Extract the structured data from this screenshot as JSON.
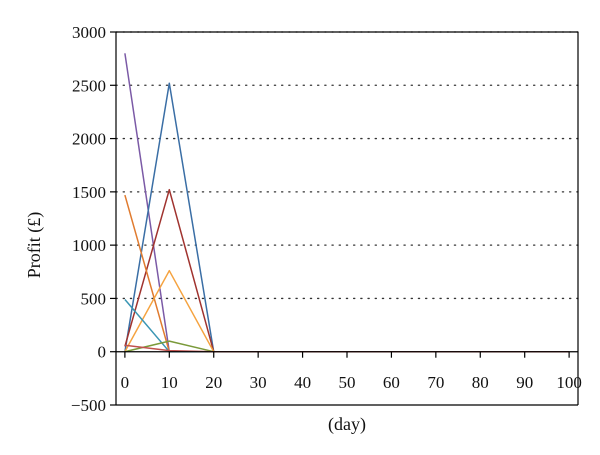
{
  "chart_data": {
    "type": "line",
    "title": "",
    "xlabel": "(day)",
    "ylabel": "Profit (£)",
    "x": [
      0,
      10,
      20,
      30,
      40,
      50,
      60,
      70,
      80,
      90,
      100
    ],
    "xlim": [
      -2,
      102
    ],
    "ylim": [
      -500,
      3000
    ],
    "yticks": [
      -500,
      0,
      500,
      1000,
      1500,
      2000,
      2500,
      3000
    ],
    "xticks": [
      0,
      10,
      20,
      30,
      40,
      50,
      60,
      70,
      80,
      90,
      100
    ],
    "grid": "horizontal-dotted",
    "series": [
      {
        "color": "#7b5aa6",
        "values": [
          2800,
          0,
          0,
          0,
          0,
          0,
          0,
          0,
          0,
          0,
          0
        ]
      },
      {
        "color": "#3a6ea5",
        "values": [
          0,
          2520,
          0,
          0,
          0,
          0,
          0,
          0,
          0,
          0,
          0
        ]
      },
      {
        "color": "#a0332f",
        "values": [
          50,
          1520,
          0,
          0,
          0,
          0,
          0,
          0,
          0,
          0,
          0
        ]
      },
      {
        "color": "#e07b2f",
        "values": [
          1470,
          0,
          0,
          0,
          0,
          0,
          0,
          0,
          0,
          0,
          0
        ]
      },
      {
        "color": "#f5a340",
        "values": [
          0,
          760,
          0,
          0,
          0,
          0,
          0,
          0,
          0,
          0,
          0
        ]
      },
      {
        "color": "#3b96b4",
        "values": [
          490,
          0,
          0,
          0,
          0,
          0,
          0,
          0,
          0,
          0,
          0
        ]
      },
      {
        "color": "#7a9a3a",
        "values": [
          0,
          100,
          0,
          0,
          0,
          0,
          0,
          0,
          0,
          0,
          0
        ]
      },
      {
        "color": "#c0504d",
        "values": [
          60,
          10,
          0,
          0,
          0,
          0,
          0,
          0,
          0,
          0,
          0
        ]
      }
    ]
  }
}
